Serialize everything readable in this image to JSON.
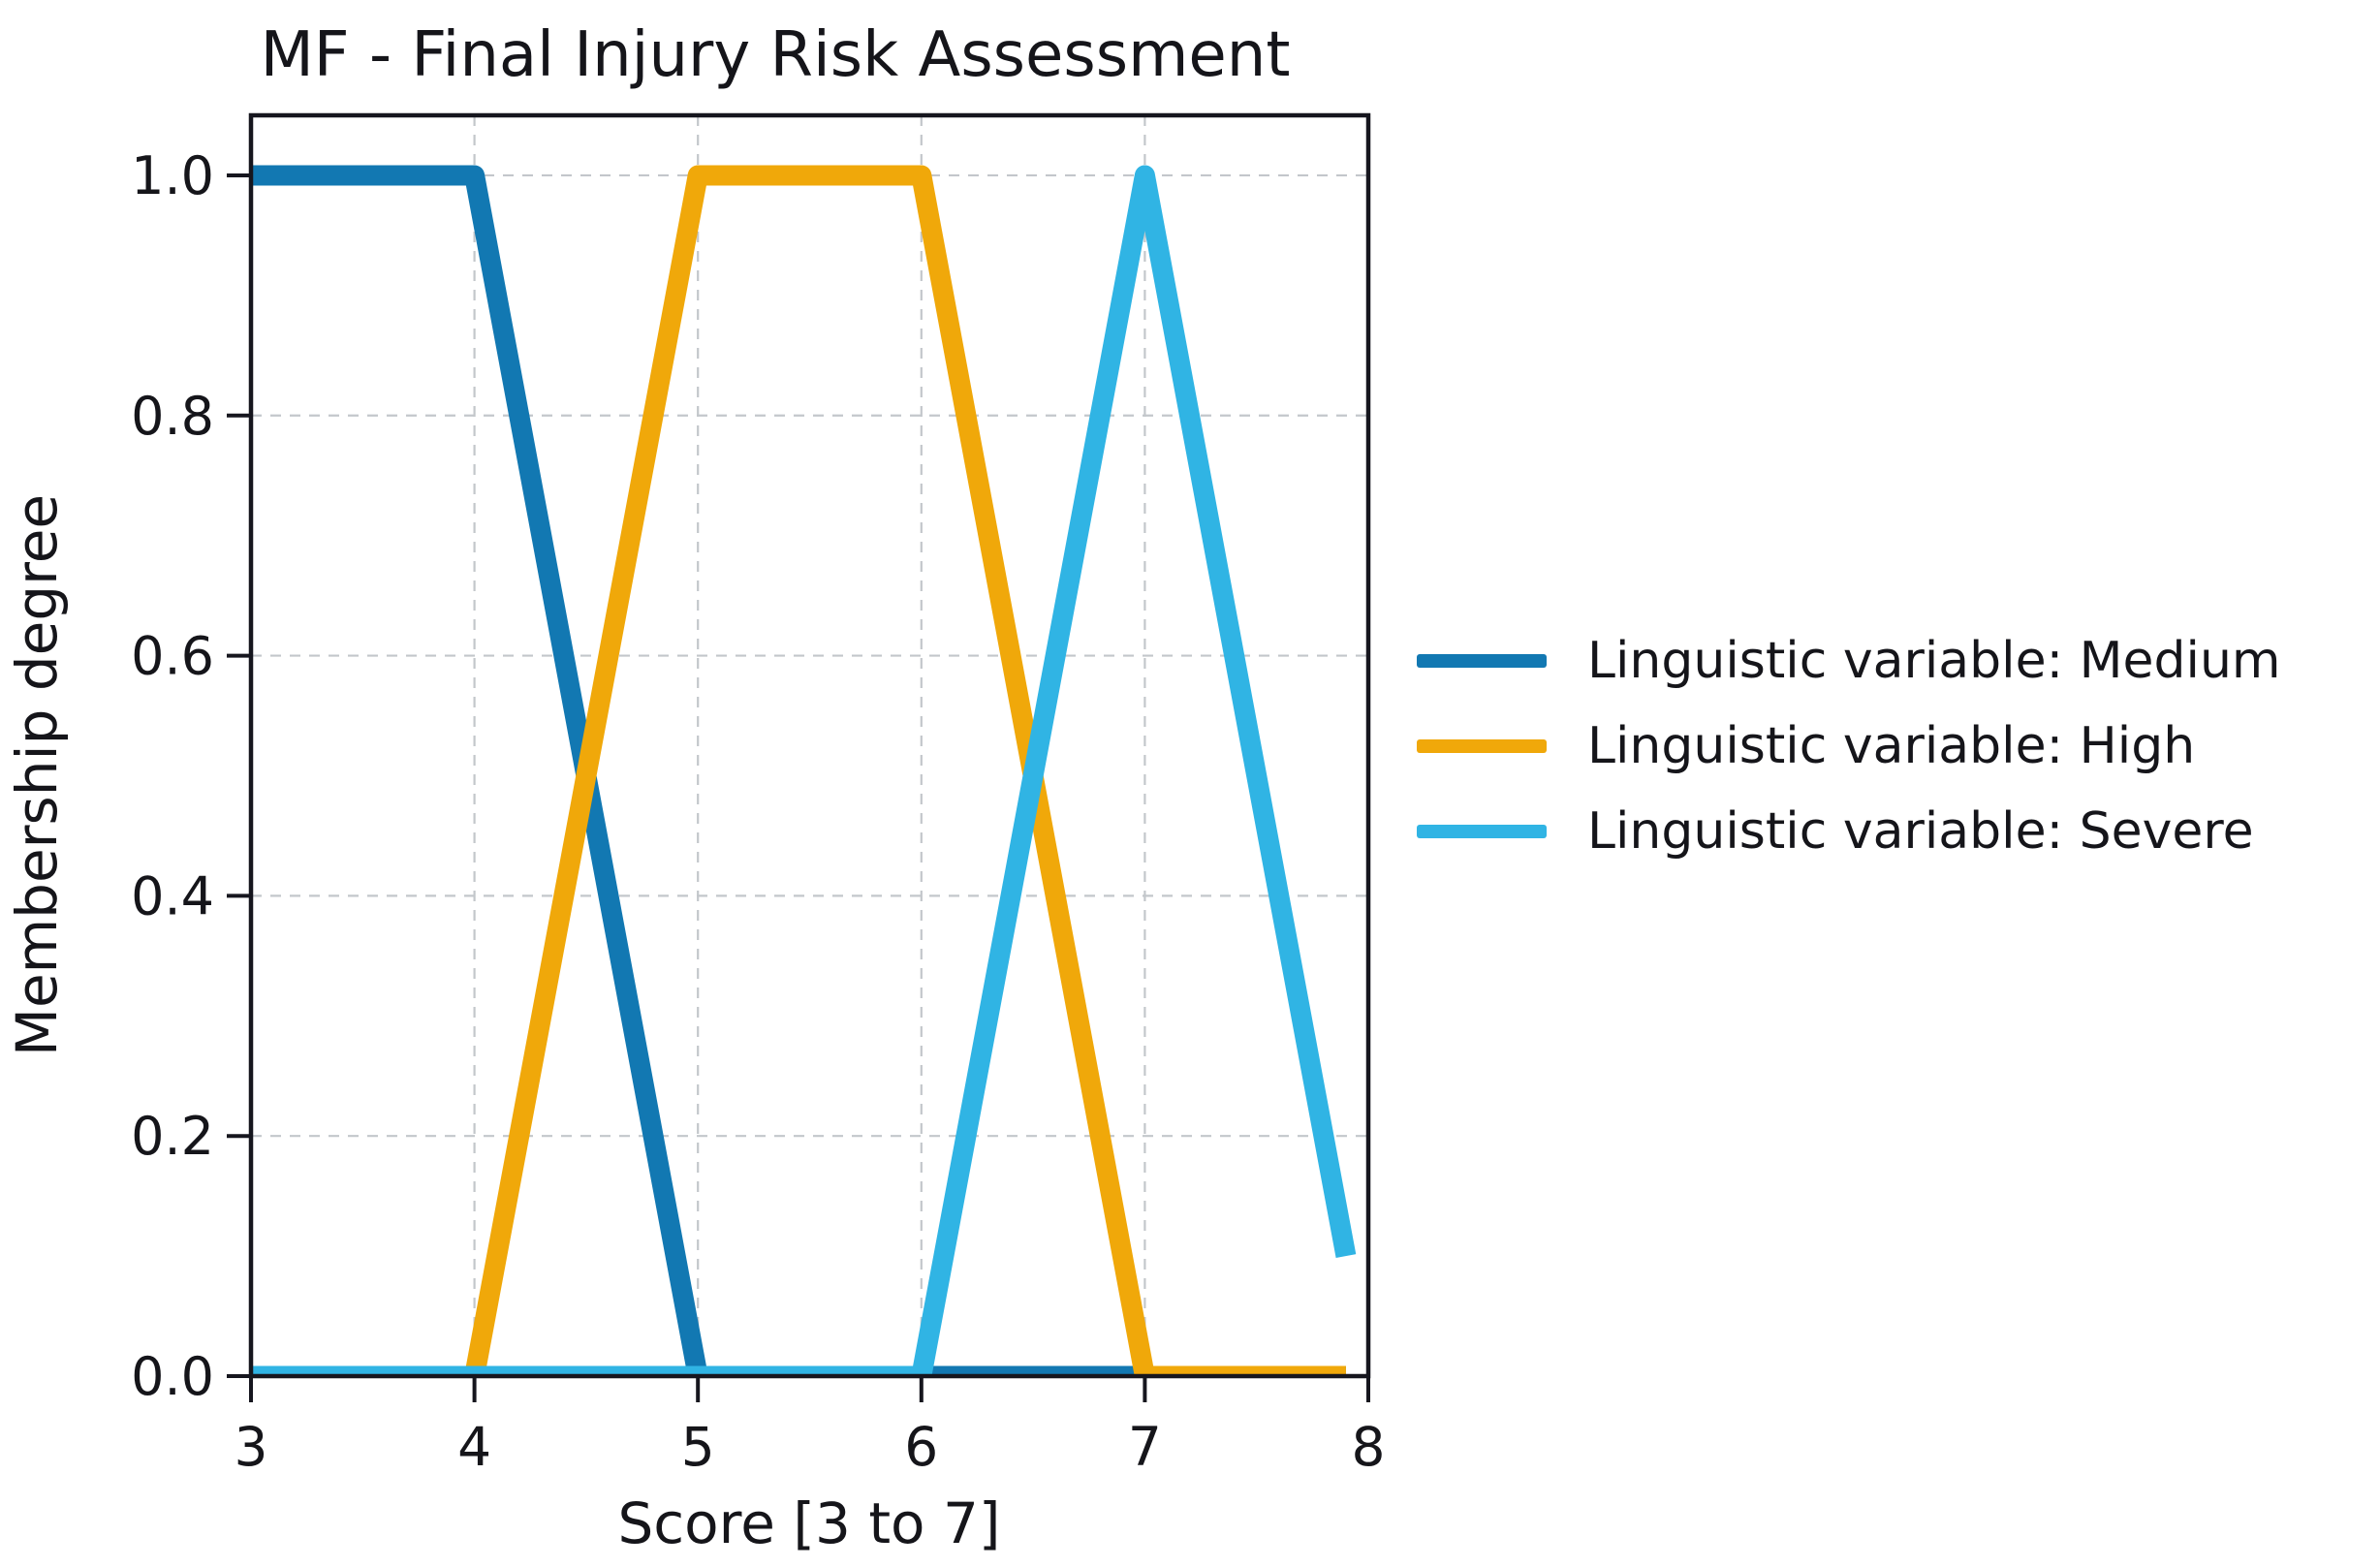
{
  "chart_data": {
    "type": "line",
    "title": "MF - Final Injury Risk Assessment",
    "xlabel": "Score [3 to 7]",
    "ylabel": "Membership degree",
    "xlim": [
      3,
      8
    ],
    "ylim": [
      0,
      1.05
    ],
    "xtick_values": [
      3,
      4,
      5,
      6,
      7,
      8
    ],
    "xtick_labels": [
      "3",
      "4",
      "5",
      "6",
      "7",
      "8"
    ],
    "ytick_values": [
      0.0,
      0.2,
      0.4,
      0.6,
      0.8,
      1.0
    ],
    "ytick_labels": [
      "0.0",
      "0.2",
      "0.4",
      "0.6",
      "0.8",
      "1.0"
    ],
    "grid": true,
    "grid_style": "dashed",
    "legend_position": "right-of-plot",
    "series": [
      {
        "name": "Linguistic variable: Medium",
        "color": "#1278b2",
        "shape": "left-shoulder trapezoid",
        "x": [
          3,
          4,
          5,
          7.9
        ],
        "y": [
          1,
          1,
          0,
          0
        ]
      },
      {
        "name": "Linguistic variable: High",
        "color": "#f0a80a",
        "shape": "trapezoid [4,5,6,7]",
        "x": [
          3,
          4,
          5,
          6,
          7,
          7.9
        ],
        "y": [
          0,
          0,
          1,
          1,
          0,
          0
        ]
      },
      {
        "name": "Linguistic variable: Severe",
        "color": "#30b4e4",
        "shape": "triangle [6,7,8] truncated at x=7.9",
        "x": [
          3,
          6,
          7,
          7.9
        ],
        "y": [
          0,
          0,
          1,
          0.1
        ]
      }
    ],
    "colors": {
      "spine": "#16161e",
      "grid": "#c3c7cb",
      "text": "#15151a",
      "background": "#ffffff"
    }
  }
}
